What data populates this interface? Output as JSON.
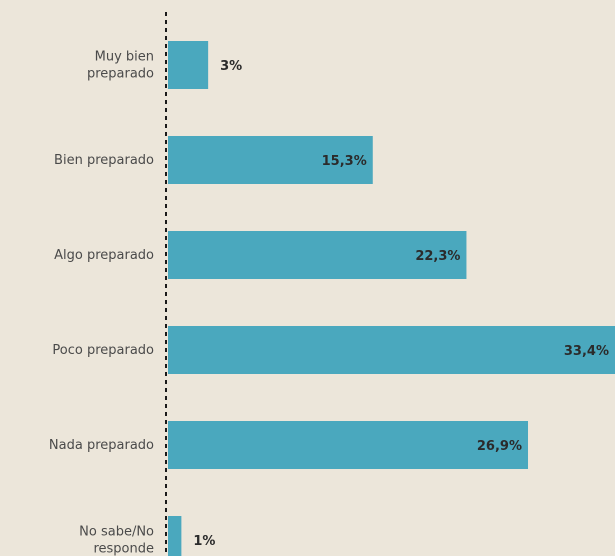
{
  "chart_data": {
    "type": "bar",
    "orientation": "horizontal",
    "categories": [
      [
        "Muy bien",
        "preparado"
      ],
      [
        "Bien preparado"
      ],
      [
        "Algo preparado"
      ],
      [
        "Poco preparado"
      ],
      [
        "Nada preparado"
      ],
      [
        "No sabe/No",
        "responde"
      ]
    ],
    "values": [
      3,
      15.3,
      22.3,
      33.4,
      26.9,
      1
    ],
    "value_labels": [
      "3%",
      "15,3%",
      "22,3%",
      "33,4%",
      "26,9%",
      "1%"
    ],
    "xlim": [
      0,
      33.4
    ],
    "bar_color": "#4aa8be",
    "baseline": "dashed",
    "grid": false,
    "legend": "none"
  }
}
